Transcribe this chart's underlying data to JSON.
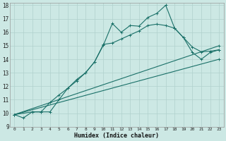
{
  "xlabel": "Humidex (Indice chaleur)",
  "bg_color": "#cce8e4",
  "line_color": "#1a7068",
  "grid_color": "#b0d0cc",
  "xlim": [
    -0.5,
    23.5
  ],
  "ylim": [
    9,
    18.2
  ],
  "xticks": [
    0,
    1,
    2,
    3,
    4,
    5,
    6,
    7,
    8,
    9,
    10,
    11,
    12,
    13,
    14,
    15,
    16,
    17,
    18,
    19,
    20,
    21,
    22,
    23
  ],
  "yticks": [
    9,
    10,
    11,
    12,
    13,
    14,
    15,
    16,
    17,
    18
  ],
  "line1_x": [
    0,
    1,
    2,
    3,
    4,
    5,
    6,
    7,
    8,
    9,
    10,
    11,
    12,
    13,
    14,
    15,
    16,
    17,
    18,
    19,
    20,
    21,
    22,
    23
  ],
  "line1_y": [
    9.9,
    9.65,
    10.1,
    10.1,
    10.1,
    11.0,
    11.85,
    12.5,
    13.0,
    13.8,
    15.05,
    16.65,
    16.0,
    16.5,
    16.45,
    17.1,
    17.4,
    18.0,
    16.3,
    15.6,
    14.9,
    14.55,
    14.6,
    14.7
  ],
  "line2_x": [
    0,
    2,
    3,
    4,
    5,
    6,
    7,
    8,
    9,
    10,
    11,
    12,
    13,
    14,
    15,
    16,
    17,
    18,
    19,
    20,
    21,
    22,
    23
  ],
  "line2_y": [
    9.9,
    10.1,
    10.1,
    10.8,
    11.35,
    11.85,
    12.4,
    13.0,
    13.8,
    15.1,
    15.2,
    15.5,
    15.8,
    16.1,
    16.5,
    16.6,
    16.5,
    16.3,
    15.6,
    14.5,
    14.0,
    14.5,
    14.7
  ],
  "line3_x": [
    0,
    23
  ],
  "line3_y": [
    9.9,
    15.0
  ],
  "line4_x": [
    0,
    23
  ],
  "line4_y": [
    9.9,
    14.0
  ]
}
